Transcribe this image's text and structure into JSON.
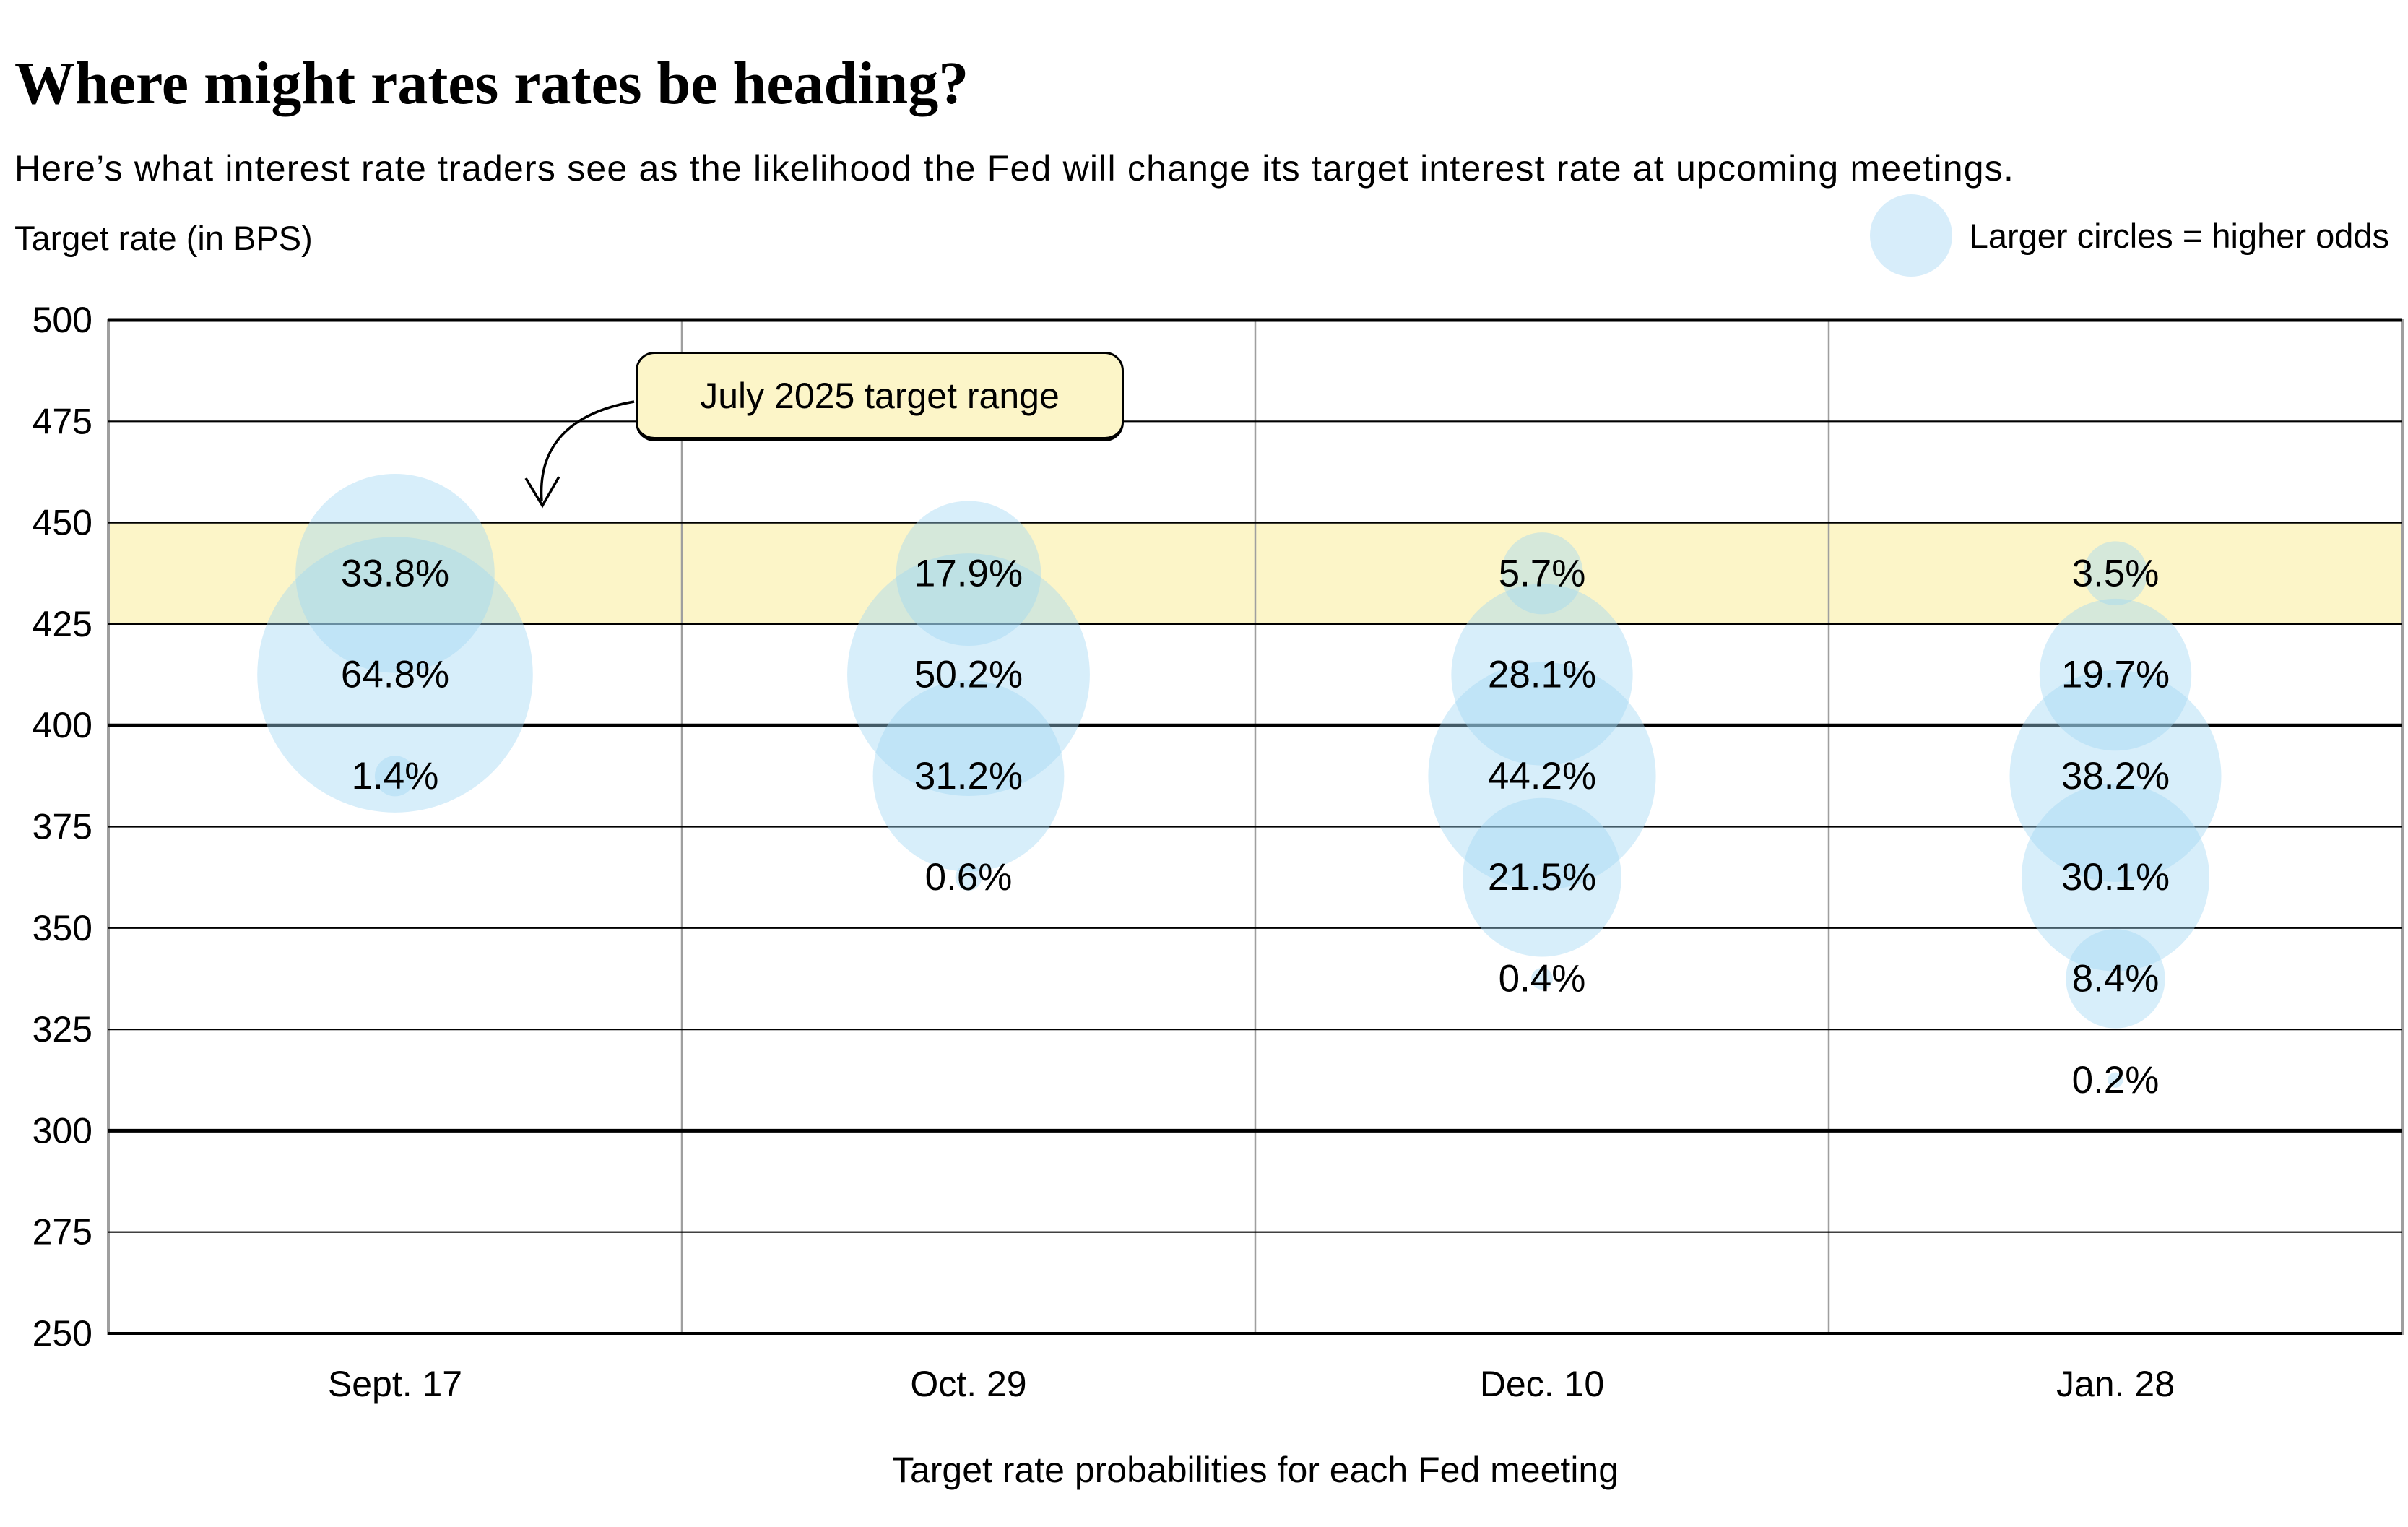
{
  "page": {
    "title": "Where might rates rates be heading?",
    "subtitle": "Here’s what interest rate traders see as the likelihood the Fed will change its target interest rate at upcoming meetings.",
    "y_axis_title": "Target rate (in BPS)",
    "legend_label": "Larger circles = higher odds",
    "annotation_label": "July 2025 target range",
    "caption": "Target rate probabilities for each Fed meeting"
  },
  "colors": {
    "background": "#ffffff",
    "bubble_fill_rgba": "rgba(159,214,243,0.42)",
    "legend_circle_fill": "#d7edfa",
    "band_fill": "#fcf5c8",
    "annotation_fill": "#fcf5c8",
    "gridline_color": "#000000",
    "axis_frame_color": "#9f9f9f",
    "text_color": "#000000"
  },
  "chart_data": {
    "type": "scatter",
    "subtype": "bubble",
    "title": "Where might rates rates be heading?",
    "subtitle": "Here’s what interest rate traders see as the likelihood the Fed will change its target interest rate at upcoming meetings.",
    "xlabel": "Target rate probabilities for each Fed meeting",
    "ylabel": "Target rate (in BPS)",
    "ylim": [
      250,
      500
    ],
    "yticks": [
      500,
      475,
      450,
      425,
      400,
      375,
      350,
      325,
      300,
      275,
      250
    ],
    "thick_gridlines_at": [
      500,
      400,
      300,
      250
    ],
    "grid": "horizontal",
    "legend_note": "Larger circles = higher odds",
    "size_encoding": "bubble area proportional to probability",
    "highlight_band": {
      "label": "July 2025 target range",
      "y_from": 425,
      "y_to": 450
    },
    "categories": [
      "Sept. 17",
      "Oct. 29",
      "Dec. 10",
      "Jan. 28"
    ],
    "value_suffix": "%",
    "series": [
      {
        "name": "Sept. 17",
        "points": [
          {
            "y": 437.5,
            "value": 33.8
          },
          {
            "y": 412.5,
            "value": 64.8
          },
          {
            "y": 387.5,
            "value": 1.4
          }
        ]
      },
      {
        "name": "Oct. 29",
        "points": [
          {
            "y": 437.5,
            "value": 17.9
          },
          {
            "y": 412.5,
            "value": 50.2
          },
          {
            "y": 387.5,
            "value": 31.2
          },
          {
            "y": 362.5,
            "value": 0.6
          }
        ]
      },
      {
        "name": "Dec. 10",
        "points": [
          {
            "y": 437.5,
            "value": 5.7
          },
          {
            "y": 412.5,
            "value": 28.1
          },
          {
            "y": 387.5,
            "value": 44.2
          },
          {
            "y": 362.5,
            "value": 21.5
          },
          {
            "y": 337.5,
            "value": 0.4
          }
        ]
      },
      {
        "name": "Jan. 28",
        "points": [
          {
            "y": 437.5,
            "value": 3.5
          },
          {
            "y": 412.5,
            "value": 19.7
          },
          {
            "y": 387.5,
            "value": 38.2
          },
          {
            "y": 362.5,
            "value": 30.1
          },
          {
            "y": 337.5,
            "value": 8.4
          },
          {
            "y": 312.5,
            "value": 0.2
          }
        ]
      }
    ]
  }
}
